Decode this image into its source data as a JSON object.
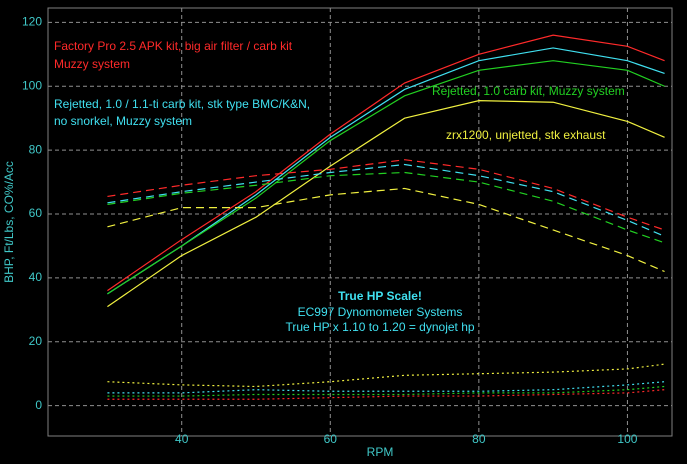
{
  "chart_data": {
    "type": "line",
    "x_label": "RPM",
    "y_label": "BHP, Ft/Lbs, CO%/Acc",
    "x": [
      30,
      40,
      50,
      60,
      70,
      80,
      90,
      100,
      105
    ],
    "xlim": [
      22,
      106
    ],
    "xticks": [
      40,
      60,
      80,
      100
    ],
    "ylim": [
      -9.5,
      124.5
    ],
    "yticks": [
      0,
      20,
      40,
      60,
      80,
      100,
      120
    ],
    "grid": true,
    "series": [
      {
        "color": "#ff2a2a",
        "style": "solid",
        "values": [
          36,
          52,
          67,
          85,
          101,
          110,
          116,
          112.5,
          108
        ]
      },
      {
        "color": "#40e0f0",
        "style": "solid",
        "values": [
          35,
          50,
          66,
          84,
          99,
          108,
          112,
          108,
          104
        ]
      },
      {
        "color": "#22d022",
        "style": "solid",
        "values": [
          35,
          50,
          65,
          83,
          97,
          105,
          108,
          105,
          100
        ]
      },
      {
        "color": "#f0f040",
        "style": "solid",
        "values": [
          31,
          47,
          59,
          75,
          90,
          95.5,
          95,
          89,
          84
        ]
      },
      {
        "color": "#ff2a2a",
        "style": "dashed",
        "values": [
          65.5,
          69,
          72,
          74,
          77,
          74,
          68,
          59,
          55
        ]
      },
      {
        "color": "#40e0f0",
        "style": "dashed",
        "values": [
          63.5,
          67,
          70,
          73,
          75.5,
          72,
          67,
          58,
          53
        ]
      },
      {
        "color": "#22d022",
        "style": "dashed",
        "values": [
          63,
          66.5,
          69,
          72,
          73,
          70,
          64,
          55,
          51
        ]
      },
      {
        "color": "#f0f040",
        "style": "dashed",
        "values": [
          56,
          62,
          62,
          66,
          68,
          63,
          55,
          47,
          42
        ]
      },
      {
        "color": "#f0f040",
        "style": "dotted",
        "values": [
          7.5,
          6.5,
          6,
          7.5,
          9.5,
          10,
          10.5,
          11.5,
          13
        ]
      },
      {
        "color": "#40e0f0",
        "style": "dotted",
        "values": [
          4,
          4,
          5,
          4.5,
          4.5,
          4.5,
          5,
          6.5,
          7.5
        ]
      },
      {
        "color": "#22d022",
        "style": "dotted",
        "values": [
          3,
          3,
          3.5,
          3.5,
          3.5,
          4,
          4,
          5,
          6
        ]
      },
      {
        "color": "#ff2a2a",
        "style": "dotted",
        "values": [
          2,
          2,
          2,
          2.5,
          3,
          3,
          3.5,
          4,
          5
        ]
      }
    ],
    "annotations": [
      {
        "text": "Factory Pro 2.5 APK kit, big air filter / carb kit",
        "color": "#ff2a2a"
      },
      {
        "text": "Muzzy system",
        "color": "#ff2a2a"
      },
      {
        "text": "Rejetted, 1.0 / 1.1-ti carb kit, stk type BMC/K&N,",
        "color": "#40e0f0"
      },
      {
        "text": "no snorkel, Muzzy system",
        "color": "#40e0f0"
      },
      {
        "text": "Rejetted, 1.0 carb kit, Muzzy system",
        "color": "#22d022"
      },
      {
        "text": "zrx1200, unjetted, stk exhaust",
        "color": "#f0f040"
      },
      {
        "text": "True HP Scale!",
        "color": "#40e0f0"
      },
      {
        "text": "EC997 Dynomometer Systems",
        "color": "#40e0f0"
      },
      {
        "text": "True HP x 1.10 to 1.20 = dynojet hp",
        "color": "#40e0f0"
      }
    ]
  }
}
